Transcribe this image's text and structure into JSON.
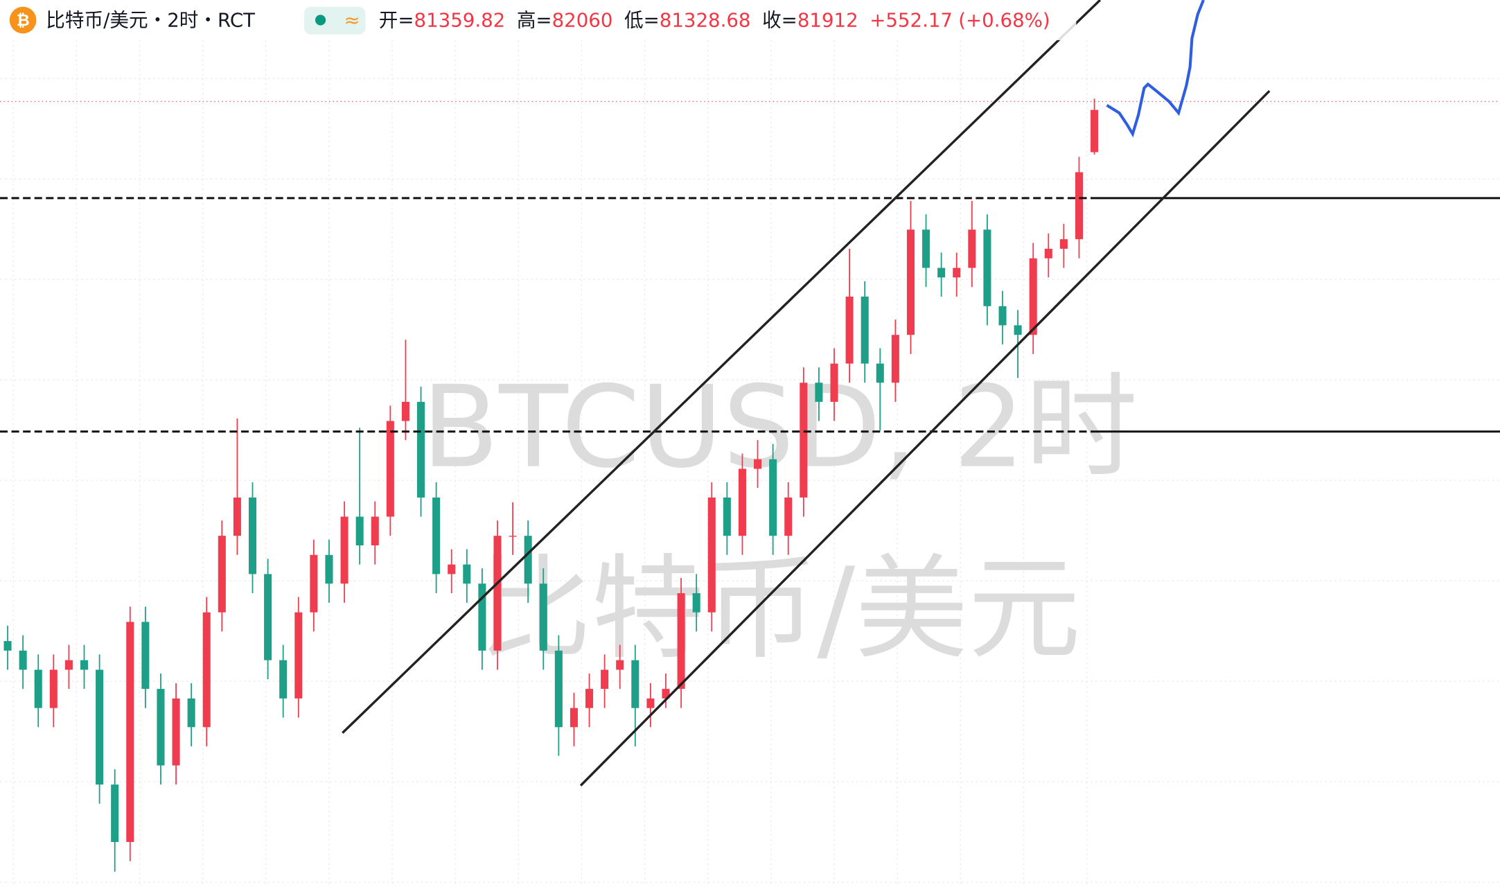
{
  "header": {
    "icon": "₿",
    "title": "比特币/美元・2时・RCT",
    "indicator": "≈",
    "open_label": "开=",
    "high_label": "高=",
    "low_label": "低=",
    "close_label": "收=",
    "change": "+552.17",
    "change_pct": "(+0.68%)"
  },
  "watermark": {
    "line1": "BTCUSD, 2时",
    "line2": "比特币/美元"
  },
  "chart_data": {
    "type": "candlestick",
    "up_color": "#ef3d4f",
    "down_color": "#1e9f88",
    "ylim": [
      71760,
      83347.5
    ],
    "open": [
      74973,
      74848,
      74598,
      74098,
      74598,
      74723,
      74598,
      73098,
      72348,
      75223,
      74348,
      73348,
      74223,
      73848,
      75348,
      76348,
      76848,
      75848,
      74723,
      74223,
      75348,
      76098,
      75723,
      76598,
      76223,
      76598,
      77848,
      78098,
      76848,
      75848,
      75973,
      75723,
      74848,
      76348,
      76348,
      75723,
      74848,
      73848,
      74098,
      74348,
      74598,
      74723,
      74098,
      74223,
      74348,
      75598,
      75348,
      76848,
      76348,
      77223,
      77348,
      76348,
      76848,
      78348,
      78098,
      78598,
      79473,
      78598,
      78348,
      78973,
      80348,
      79848,
      79723,
      79848,
      80348,
      79348,
      79098,
      78973,
      79973,
      80098,
      80223,
      81359.82
    ],
    "high": [
      75173,
      75048,
      74798,
      74798,
      74923,
      74923,
      74798,
      73298,
      75423,
      75423,
      74548,
      74423,
      74423,
      75548,
      76548,
      77880,
      77048,
      76048,
      74923,
      75548,
      76298,
      76298,
      76798,
      77760,
      76798,
      78048,
      78910,
      78298,
      77048,
      76173,
      76173,
      75923,
      76548,
      76785,
      76548,
      75923,
      75048,
      74298,
      74548,
      74798,
      74923,
      74923,
      74423,
      74548,
      75798,
      75848,
      77048,
      77048,
      77423,
      77598,
      77548,
      77048,
      78548,
      78548,
      78798,
      80098,
      79673,
      78798,
      79173,
      80723,
      80548,
      80048,
      80048,
      80723,
      80548,
      79548,
      79298,
      80173,
      80298,
      80423,
      81298,
      82060
    ],
    "low": [
      74598,
      74348,
      73848,
      73848,
      74348,
      74348,
      72848,
      71960,
      72098,
      74098,
      73098,
      73098,
      73598,
      73598,
      75098,
      76098,
      75598,
      74473,
      73973,
      73973,
      75098,
      75473,
      75473,
      75973,
      75973,
      76348,
      77598,
      76598,
      75598,
      75598,
      75473,
      74598,
      74598,
      76098,
      75473,
      74598,
      73473,
      73598,
      73848,
      74098,
      74348,
      73598,
      73848,
      74098,
      74098,
      75098,
      75098,
      76098,
      76098,
      76973,
      76098,
      76098,
      76598,
      77848,
      77848,
      78348,
      78348,
      77723,
      78098,
      78723,
      79598,
      79473,
      79473,
      79598,
      79098,
      78848,
      78410,
      78723,
      79723,
      79848,
      79973,
      81328.68
    ],
    "close": [
      74848,
      74598,
      74098,
      74598,
      74723,
      74598,
      73098,
      72348,
      75223,
      74348,
      73348,
      74223,
      73848,
      75348,
      76348,
      76848,
      75848,
      74723,
      74223,
      75348,
      76098,
      75723,
      76598,
      76223,
      76598,
      77848,
      78098,
      76848,
      75848,
      75973,
      75723,
      74848,
      76348,
      76348,
      75723,
      74848,
      73848,
      74098,
      74348,
      74598,
      74723,
      74098,
      74223,
      74348,
      75598,
      75348,
      76848,
      76348,
      77223,
      77348,
      76348,
      76848,
      78348,
      78098,
      78598,
      79473,
      78598,
      78348,
      78973,
      80348,
      79848,
      79723,
      79848,
      80348,
      79348,
      79098,
      78973,
      79973,
      80098,
      80223,
      81098,
      81912
    ]
  }
}
